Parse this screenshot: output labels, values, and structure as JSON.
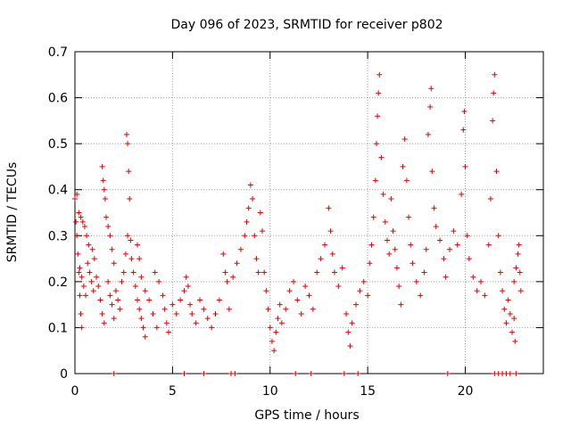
{
  "chart_data": {
    "type": "scatter",
    "title": "Day 096 of 2023, SRMTID for receiver p802",
    "xlabel": "GPS time / hours",
    "ylabel": "SRMTID / TECUs",
    "xlim": [
      0,
      24
    ],
    "ylim": [
      0,
      0.7
    ],
    "x_ticks": [
      0,
      5,
      10,
      15,
      20
    ],
    "x_tick_labels": [
      "0",
      "5",
      "10",
      "15",
      "20"
    ],
    "y_ticks": [
      0,
      0.1,
      0.2,
      0.3,
      0.4,
      0.5,
      0.6,
      0.7
    ],
    "y_tick_labels": [
      "0",
      "0.1",
      "0.2",
      "0.3",
      "0.4",
      "0.5",
      "0.6",
      "0.7"
    ],
    "grid": true,
    "marker": "+",
    "color": "#e00000",
    "series": [
      {
        "name": "SRMTID",
        "points": [
          [
            0.0,
            0.38
          ],
          [
            0.05,
            0.33
          ],
          [
            0.1,
            0.3
          ],
          [
            0.15,
            0.26
          ],
          [
            0.2,
            0.22
          ],
          [
            0.25,
            0.17
          ],
          [
            0.3,
            0.13
          ],
          [
            0.35,
            0.1
          ],
          [
            0.1,
            0.39
          ],
          [
            0.2,
            0.35
          ],
          [
            0.3,
            0.34
          ],
          [
            0.4,
            0.33
          ],
          [
            0.5,
            0.32
          ],
          [
            0.25,
            0.23
          ],
          [
            0.35,
            0.21
          ],
          [
            0.45,
            0.19
          ],
          [
            0.55,
            0.17
          ],
          [
            0.65,
            0.24
          ],
          [
            0.75,
            0.22
          ],
          [
            0.85,
            0.2
          ],
          [
            0.95,
            0.18
          ],
          [
            0.6,
            0.3
          ],
          [
            0.7,
            0.28
          ],
          [
            0.9,
            0.27
          ],
          [
            1.0,
            0.25
          ],
          [
            1.1,
            0.21
          ],
          [
            1.2,
            0.19
          ],
          [
            1.3,
            0.16
          ],
          [
            1.4,
            0.13
          ],
          [
            1.5,
            0.11
          ],
          [
            1.4,
            0.45
          ],
          [
            1.45,
            0.42
          ],
          [
            1.5,
            0.4
          ],
          [
            1.55,
            0.38
          ],
          [
            1.6,
            0.34
          ],
          [
            1.7,
            0.32
          ],
          [
            1.8,
            0.3
          ],
          [
            1.9,
            0.27
          ],
          [
            2.0,
            0.24
          ],
          [
            1.7,
            0.2
          ],
          [
            1.8,
            0.17
          ],
          [
            1.9,
            0.15
          ],
          [
            2.0,
            0.12
          ],
          [
            2.1,
            0.18
          ],
          [
            2.2,
            0.16
          ],
          [
            2.3,
            0.14
          ],
          [
            2.4,
            0.2
          ],
          [
            2.5,
            0.22
          ],
          [
            2.6,
            0.26
          ],
          [
            2.7,
            0.3
          ],
          [
            2.65,
            0.52
          ],
          [
            2.7,
            0.5
          ],
          [
            2.75,
            0.44
          ],
          [
            2.8,
            0.38
          ],
          [
            2.85,
            0.29
          ],
          [
            2.9,
            0.25
          ],
          [
            3.0,
            0.22
          ],
          [
            3.1,
            0.19
          ],
          [
            3.2,
            0.16
          ],
          [
            3.3,
            0.14
          ],
          [
            3.4,
            0.12
          ],
          [
            3.5,
            0.1
          ],
          [
            3.6,
            0.08
          ],
          [
            3.2,
            0.28
          ],
          [
            3.3,
            0.25
          ],
          [
            3.4,
            0.21
          ],
          [
            3.6,
            0.18
          ],
          [
            3.8,
            0.16
          ],
          [
            4.0,
            0.13
          ],
          [
            4.2,
            0.1
          ],
          [
            4.1,
            0.22
          ],
          [
            4.3,
            0.2
          ],
          [
            4.5,
            0.17
          ],
          [
            4.6,
            0.14
          ],
          [
            4.7,
            0.11
          ],
          [
            4.8,
            0.09
          ],
          [
            5.0,
            0.15
          ],
          [
            5.2,
            0.13
          ],
          [
            5.4,
            0.16
          ],
          [
            5.6,
            0.18
          ],
          [
            5.7,
            0.21
          ],
          [
            5.8,
            0.19
          ],
          [
            5.9,
            0.15
          ],
          [
            6.0,
            0.13
          ],
          [
            6.2,
            0.11
          ],
          [
            6.4,
            0.16
          ],
          [
            6.6,
            0.14
          ],
          [
            6.8,
            0.12
          ],
          [
            7.0,
            0.1
          ],
          [
            7.2,
            0.13
          ],
          [
            7.4,
            0.16
          ],
          [
            7.6,
            0.26
          ],
          [
            7.7,
            0.22
          ],
          [
            7.8,
            0.2
          ],
          [
            7.9,
            0.14
          ],
          [
            8.1,
            0.21
          ],
          [
            8.3,
            0.24
          ],
          [
            8.5,
            0.27
          ],
          [
            8.7,
            0.3
          ],
          [
            8.8,
            0.33
          ],
          [
            8.9,
            0.36
          ],
          [
            9.0,
            0.41
          ],
          [
            9.1,
            0.38
          ],
          [
            9.2,
            0.3
          ],
          [
            9.3,
            0.25
          ],
          [
            9.4,
            0.22
          ],
          [
            9.5,
            0.35
          ],
          [
            9.6,
            0.31
          ],
          [
            9.7,
            0.22
          ],
          [
            9.8,
            0.18
          ],
          [
            9.9,
            0.14
          ],
          [
            10.0,
            0.1
          ],
          [
            10.1,
            0.07
          ],
          [
            10.2,
            0.05
          ],
          [
            10.3,
            0.09
          ],
          [
            10.4,
            0.12
          ],
          [
            10.5,
            0.15
          ],
          [
            10.6,
            0.11
          ],
          [
            10.8,
            0.14
          ],
          [
            11.0,
            0.18
          ],
          [
            11.2,
            0.2
          ],
          [
            11.4,
            0.16
          ],
          [
            11.6,
            0.13
          ],
          [
            11.8,
            0.19
          ],
          [
            12.0,
            0.17
          ],
          [
            12.2,
            0.14
          ],
          [
            12.4,
            0.22
          ],
          [
            12.6,
            0.25
          ],
          [
            12.8,
            0.28
          ],
          [
            13.0,
            0.36
          ],
          [
            13.1,
            0.31
          ],
          [
            13.2,
            0.26
          ],
          [
            13.3,
            0.22
          ],
          [
            13.5,
            0.19
          ],
          [
            13.7,
            0.23
          ],
          [
            13.9,
            0.13
          ],
          [
            14.0,
            0.09
          ],
          [
            14.1,
            0.06
          ],
          [
            14.2,
            0.11
          ],
          [
            14.4,
            0.15
          ],
          [
            14.6,
            0.18
          ],
          [
            14.8,
            0.2
          ],
          [
            15.0,
            0.17
          ],
          [
            15.1,
            0.24
          ],
          [
            15.2,
            0.28
          ],
          [
            15.3,
            0.34
          ],
          [
            15.4,
            0.42
          ],
          [
            15.45,
            0.5
          ],
          [
            15.5,
            0.56
          ],
          [
            15.55,
            0.61
          ],
          [
            15.6,
            0.65
          ],
          [
            15.7,
            0.47
          ],
          [
            15.8,
            0.39
          ],
          [
            15.9,
            0.33
          ],
          [
            16.0,
            0.29
          ],
          [
            16.1,
            0.26
          ],
          [
            16.2,
            0.38
          ],
          [
            16.3,
            0.31
          ],
          [
            16.4,
            0.27
          ],
          [
            16.5,
            0.23
          ],
          [
            16.6,
            0.19
          ],
          [
            16.7,
            0.15
          ],
          [
            16.8,
            0.45
          ],
          [
            16.9,
            0.51
          ],
          [
            17.0,
            0.42
          ],
          [
            17.1,
            0.34
          ],
          [
            17.2,
            0.28
          ],
          [
            17.3,
            0.24
          ],
          [
            17.5,
            0.2
          ],
          [
            17.7,
            0.17
          ],
          [
            17.9,
            0.22
          ],
          [
            18.0,
            0.27
          ],
          [
            18.1,
            0.52
          ],
          [
            18.2,
            0.58
          ],
          [
            18.25,
            0.62
          ],
          [
            18.3,
            0.44
          ],
          [
            18.4,
            0.36
          ],
          [
            18.5,
            0.32
          ],
          [
            18.7,
            0.29
          ],
          [
            18.9,
            0.25
          ],
          [
            19.0,
            0.21
          ],
          [
            19.2,
            0.27
          ],
          [
            19.4,
            0.31
          ],
          [
            19.6,
            0.28
          ],
          [
            19.8,
            0.39
          ],
          [
            19.9,
            0.53
          ],
          [
            19.95,
            0.57
          ],
          [
            20.0,
            0.45
          ],
          [
            20.1,
            0.3
          ],
          [
            20.2,
            0.25
          ],
          [
            20.4,
            0.21
          ],
          [
            20.6,
            0.18
          ],
          [
            20.8,
            0.2
          ],
          [
            21.0,
            0.17
          ],
          [
            21.2,
            0.28
          ],
          [
            21.3,
            0.38
          ],
          [
            21.4,
            0.55
          ],
          [
            21.45,
            0.61
          ],
          [
            21.5,
            0.65
          ],
          [
            21.6,
            0.44
          ],
          [
            21.7,
            0.3
          ],
          [
            21.8,
            0.22
          ],
          [
            21.9,
            0.18
          ],
          [
            22.0,
            0.14
          ],
          [
            22.1,
            0.11
          ],
          [
            22.2,
            0.16
          ],
          [
            22.3,
            0.13
          ],
          [
            22.4,
            0.09
          ],
          [
            22.5,
            0.2
          ],
          [
            22.6,
            0.23
          ],
          [
            22.7,
            0.26
          ],
          [
            22.75,
            0.28
          ],
          [
            22.8,
            0.22
          ],
          [
            22.85,
            0.18
          ],
          [
            22.5,
            0.12
          ],
          [
            22.55,
            0.07
          ],
          [
            2.0,
            0.0
          ],
          [
            5.6,
            0.0
          ],
          [
            6.6,
            0.0
          ],
          [
            8.0,
            0.0
          ],
          [
            8.2,
            0.0
          ],
          [
            11.3,
            0.0
          ],
          [
            12.1,
            0.0
          ],
          [
            13.8,
            0.0
          ],
          [
            14.5,
            0.0
          ],
          [
            19.1,
            0.0
          ],
          [
            21.5,
            0.0
          ],
          [
            21.7,
            0.0
          ],
          [
            21.9,
            0.0
          ],
          [
            22.1,
            0.0
          ],
          [
            22.3,
            0.0
          ],
          [
            22.6,
            0.0
          ]
        ]
      }
    ]
  }
}
